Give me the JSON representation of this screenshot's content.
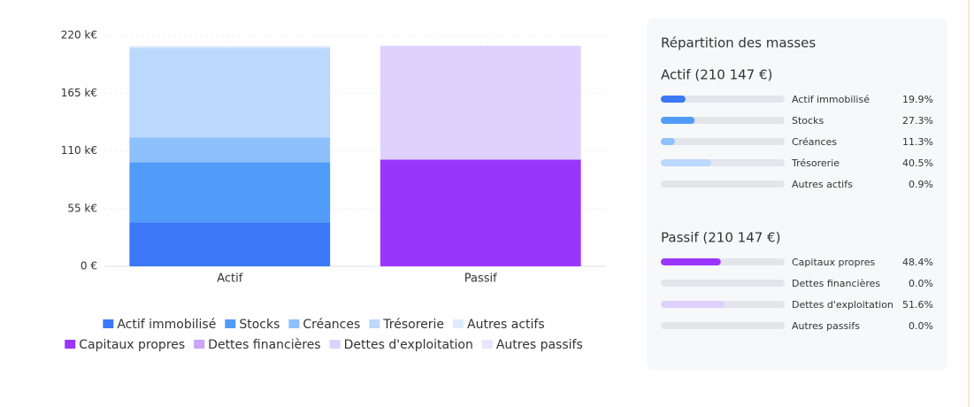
{
  "chart_data": {
    "type": "stacked_bar",
    "categories": [
      "Actif",
      "Passif"
    ],
    "ylim": [
      0,
      220
    ],
    "yticks": [
      {
        "value": 0,
        "label": "0 €"
      },
      {
        "value": 55,
        "label": "55 k€"
      },
      {
        "value": 110,
        "label": "110 k€"
      },
      {
        "value": 165,
        "label": "165 k€"
      },
      {
        "value": 220,
        "label": "220 k€"
      }
    ],
    "grid": true,
    "series": [
      {
        "name": "Actif immobilisé",
        "color": "#3a78f7",
        "values": [
          41.8,
          null
        ]
      },
      {
        "name": "Stocks",
        "color": "#529cf9",
        "values": [
          57.4,
          null
        ]
      },
      {
        "name": "Créances",
        "color": "#8ec0fb",
        "values": [
          23.7,
          null
        ]
      },
      {
        "name": "Trésorerie",
        "color": "#bbd8fd",
        "values": [
          85.1,
          null
        ]
      },
      {
        "name": "Autres actifs",
        "color": "#dcebfe",
        "values": [
          1.9,
          null
        ]
      },
      {
        "name": "Capitaux propres",
        "color": "#9a36fb",
        "values": [
          null,
          101.7
        ]
      },
      {
        "name": "Dettes financières",
        "color": "#c9a5fb",
        "values": [
          null,
          0
        ]
      },
      {
        "name": "Dettes d'exploitation",
        "color": "#ded1fd",
        "values": [
          null,
          108.4
        ]
      },
      {
        "name": "Autres passifs",
        "color": "#ece4fd",
        "values": [
          null,
          0
        ]
      }
    ]
  },
  "panel": {
    "title": "Répartition des masses",
    "sections": [
      {
        "title": "Actif (210 147 €)",
        "color": "#2f5fe0",
        "items": [
          {
            "label": "Actif immobilisé",
            "value": 19.9,
            "value_label": "19.9%",
            "color": "#3a78f7"
          },
          {
            "label": "Stocks",
            "value": 27.3,
            "value_label": "27.3%",
            "color": "#529cf9"
          },
          {
            "label": "Créances",
            "value": 11.3,
            "value_label": "11.3%",
            "color": "#8ec0fb"
          },
          {
            "label": "Trésorerie",
            "value": 40.5,
            "value_label": "40.5%",
            "color": "#bbd8fd"
          },
          {
            "label": "Autres actifs",
            "value": 0.9,
            "value_label": "0.9%",
            "color": "#dcebfe"
          }
        ]
      },
      {
        "title": "Passif (210 147 €)",
        "color": "#9322e8",
        "items": [
          {
            "label": "Capitaux propres",
            "value": 48.4,
            "value_label": "48.4%",
            "color": "#9a36fb"
          },
          {
            "label": "Dettes financières",
            "value": 0.0,
            "value_label": "0.0%",
            "color": "#c9a5fb"
          },
          {
            "label": "Dettes d'exploitation",
            "value": 51.6,
            "value_label": "51.6%",
            "color": "#ded1fd"
          },
          {
            "label": "Autres passifs",
            "value": 0.0,
            "value_label": "0.0%",
            "color": "#ece4fd"
          }
        ]
      }
    ]
  }
}
